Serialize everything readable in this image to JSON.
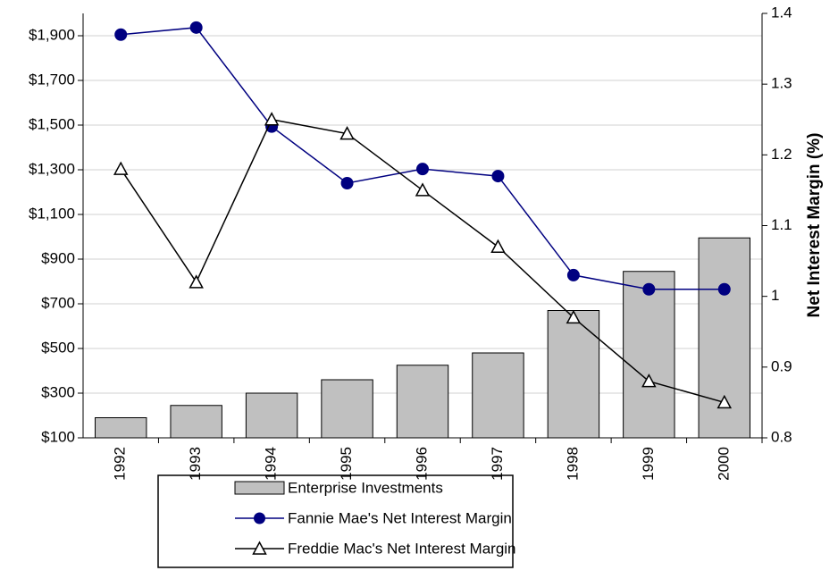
{
  "chart_data": {
    "type": "bar",
    "categories": [
      "1992",
      "1993",
      "1994",
      "1995",
      "1996",
      "1997",
      "1998",
      "1999",
      "2000"
    ],
    "series": [
      {
        "name": "Enterprise Investments",
        "type": "bar",
        "color": "#c0c0c0",
        "values": [
          190,
          245,
          300,
          360,
          425,
          480,
          670,
          845,
          995
        ]
      },
      {
        "name": "Fannie Mae's Net Interest Margin",
        "type": "line",
        "marker": "circle",
        "axis": "y2",
        "color": "#000080",
        "values": [
          1.37,
          1.38,
          1.24,
          1.16,
          1.18,
          1.17,
          1.03,
          1.01,
          1.01
        ]
      },
      {
        "name": "Freddie Mac's Net Interest Margin",
        "type": "line",
        "marker": "triangle",
        "axis": "y2",
        "color": "#000000",
        "values": [
          1.18,
          1.02,
          1.25,
          1.23,
          1.15,
          1.07,
          0.97,
          0.88,
          0.85
        ]
      }
    ],
    "ylim": [
      100,
      2000
    ],
    "yticks": [
      {
        "value": 100,
        "label": "$100"
      },
      {
        "value": 300,
        "label": "$300"
      },
      {
        "value": 500,
        "label": "$500"
      },
      {
        "value": 700,
        "label": "$700"
      },
      {
        "value": 900,
        "label": "$900"
      },
      {
        "value": 1100,
        "label": "$1,100"
      },
      {
        "value": 1300,
        "label": "$1,300"
      },
      {
        "value": 1500,
        "label": "$1,500"
      },
      {
        "value": 1700,
        "label": "$1,700"
      },
      {
        "value": 1900,
        "label": "$1,900"
      }
    ],
    "y2lim": [
      0.8,
      1.4
    ],
    "y2ticks": [
      0.8,
      0.9,
      1,
      1.1,
      1.2,
      1.3,
      1.4
    ],
    "y2label": "Net Interest Margin (%)",
    "grid": true
  }
}
